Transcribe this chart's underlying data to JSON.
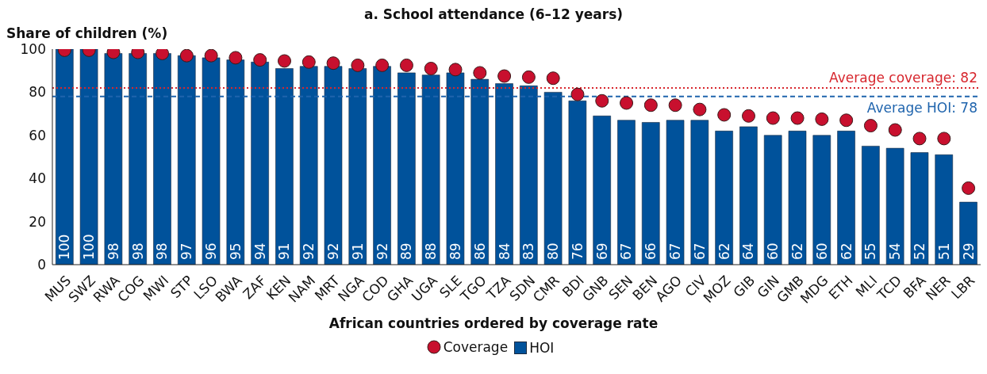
{
  "chart_data": {
    "type": "bar",
    "title": "a. School attendance (6–12 years)",
    "ylabel": "Share of children (%)",
    "xlabel": "African countries ordered by coverage rate",
    "categories": [
      "MUS",
      "SWZ",
      "RWA",
      "COG",
      "MWI",
      "STP",
      "LSO",
      "BWA",
      "ZAF",
      "KEN",
      "NAM",
      "MRT",
      "NGA",
      "COD",
      "GHA",
      "UGA",
      "SLE",
      "TGO",
      "TZA",
      "SDN",
      "CMR",
      "BDI",
      "GNB",
      "SEN",
      "BEN",
      "AGO",
      "CIV",
      "MOZ",
      "GIB",
      "GIN",
      "GMB",
      "MDG",
      "ETH",
      "MLI",
      "TCD",
      "BFA",
      "NER",
      "LBR"
    ],
    "series": [
      {
        "name": "Coverage",
        "type": "scatter",
        "color": "#c8102e",
        "values": [
          99.5,
          99.5,
          98.5,
          98.5,
          98,
          97,
          97,
          96,
          95,
          94.5,
          94,
          93.5,
          92.5,
          92.5,
          92.5,
          91,
          90.5,
          89,
          87.5,
          87,
          86.5,
          79,
          76,
          75,
          74,
          74,
          72,
          69.5,
          69,
          68,
          68,
          67.5,
          67,
          64.5,
          62.5,
          58.5,
          58.5,
          35.5
        ]
      },
      {
        "name": "HOI",
        "color": "#00529b",
        "values": [
          100,
          100,
          98,
          98,
          98,
          97,
          96,
          95,
          94,
          91,
          92,
          92,
          91,
          92,
          89,
          88,
          89,
          86,
          84,
          83,
          80,
          76,
          69,
          67,
          66,
          67,
          67,
          62,
          64,
          60,
          62,
          60,
          62,
          55,
          54,
          52,
          51,
          29
        ],
        "value_labels": [
          "100",
          "100",
          "98",
          "98",
          "98",
          "97",
          "96",
          "95",
          "94",
          "91",
          "92",
          "92",
          "91",
          "92",
          "89",
          "88",
          "89",
          "86",
          "84",
          "83",
          "80",
          "76",
          "69",
          "67",
          "66",
          "67",
          "67",
          "62",
          "64",
          "60",
          "62",
          "60",
          "62",
          "55",
          "54",
          "52",
          "51",
          "29"
        ]
      }
    ],
    "ylim": [
      0,
      100
    ],
    "yticks": [
      0,
      20,
      40,
      60,
      80,
      100
    ],
    "grid": false,
    "legend": "bottom",
    "marker": "circle",
    "ref_lines": [
      {
        "axis": "y",
        "value": 82,
        "label": "Average coverage: 82",
        "color": "#d7262d",
        "line_style": "dotted"
      },
      {
        "axis": "y",
        "value": 78,
        "label": "Average HOI: 78",
        "color": "#1f64ad",
        "line_style": "dashed"
      }
    ]
  }
}
